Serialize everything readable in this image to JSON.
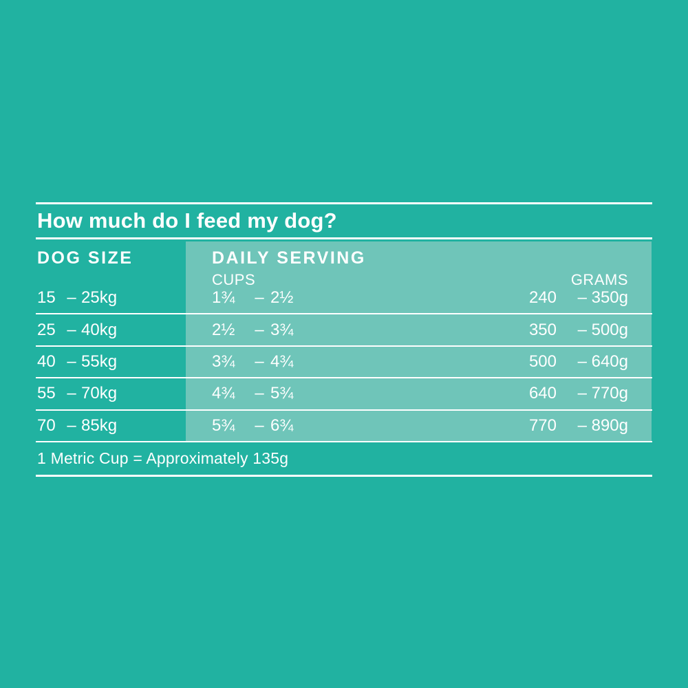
{
  "colors": {
    "background": "#21b2a1",
    "band": "#6fc5b9",
    "text": "#ffffff",
    "line": "#ffffff"
  },
  "title": "How much do I feed my dog?",
  "table": {
    "headers": {
      "dog_size": "DOG SIZE",
      "daily_serving": "DAILY SERVING",
      "cups": "CUPS",
      "grams": "GRAMS"
    },
    "dash": "–",
    "rows": [
      {
        "size_min": "15",
        "size_max": "25kg",
        "cups_min": "1¾",
        "cups_max": "2½",
        "grams_min": "240",
        "grams_max": "350g"
      },
      {
        "size_min": "25",
        "size_max": "40kg",
        "cups_min": "2½",
        "cups_max": "3¾",
        "grams_min": "350",
        "grams_max": "500g"
      },
      {
        "size_min": "40",
        "size_max": "55kg",
        "cups_min": "3¾",
        "cups_max": "4¾",
        "grams_min": "500",
        "grams_max": "640g"
      },
      {
        "size_min": "55",
        "size_max": "70kg",
        "cups_min": "4¾",
        "cups_max": "5¾",
        "grams_min": "640",
        "grams_max": "770g"
      },
      {
        "size_min": "70",
        "size_max": "85kg",
        "cups_min": "5¾",
        "cups_max": "6¾",
        "grams_min": "770",
        "grams_max": "890g"
      }
    ]
  },
  "footnote": "1 Metric Cup = Approximately 135g",
  "chart_data": {
    "type": "table",
    "title": "How much do I feed my dog?",
    "columns": [
      "DOG SIZE",
      "DAILY SERVING — CUPS",
      "DAILY SERVING — GRAMS"
    ],
    "rows": [
      [
        "15 – 25kg",
        "1¾ – 2½",
        "240 – 350g"
      ],
      [
        "25 – 40kg",
        "2½ – 3¾",
        "350 – 500g"
      ],
      [
        "40 – 55kg",
        "3¾ – 4¾",
        "500 – 640g"
      ],
      [
        "55 – 70kg",
        "4¾ – 5¾",
        "640 – 770g"
      ],
      [
        "70 – 85kg",
        "5¾ – 6¾",
        "770 – 890g"
      ]
    ],
    "footnote": "1 Metric Cup = Approximately 135g",
    "layout": {
      "highlight_band_columns": [
        "DAILY SERVING — CUPS",
        "DAILY SERVING — GRAMS"
      ],
      "grid": "horizontal white separators only"
    }
  }
}
